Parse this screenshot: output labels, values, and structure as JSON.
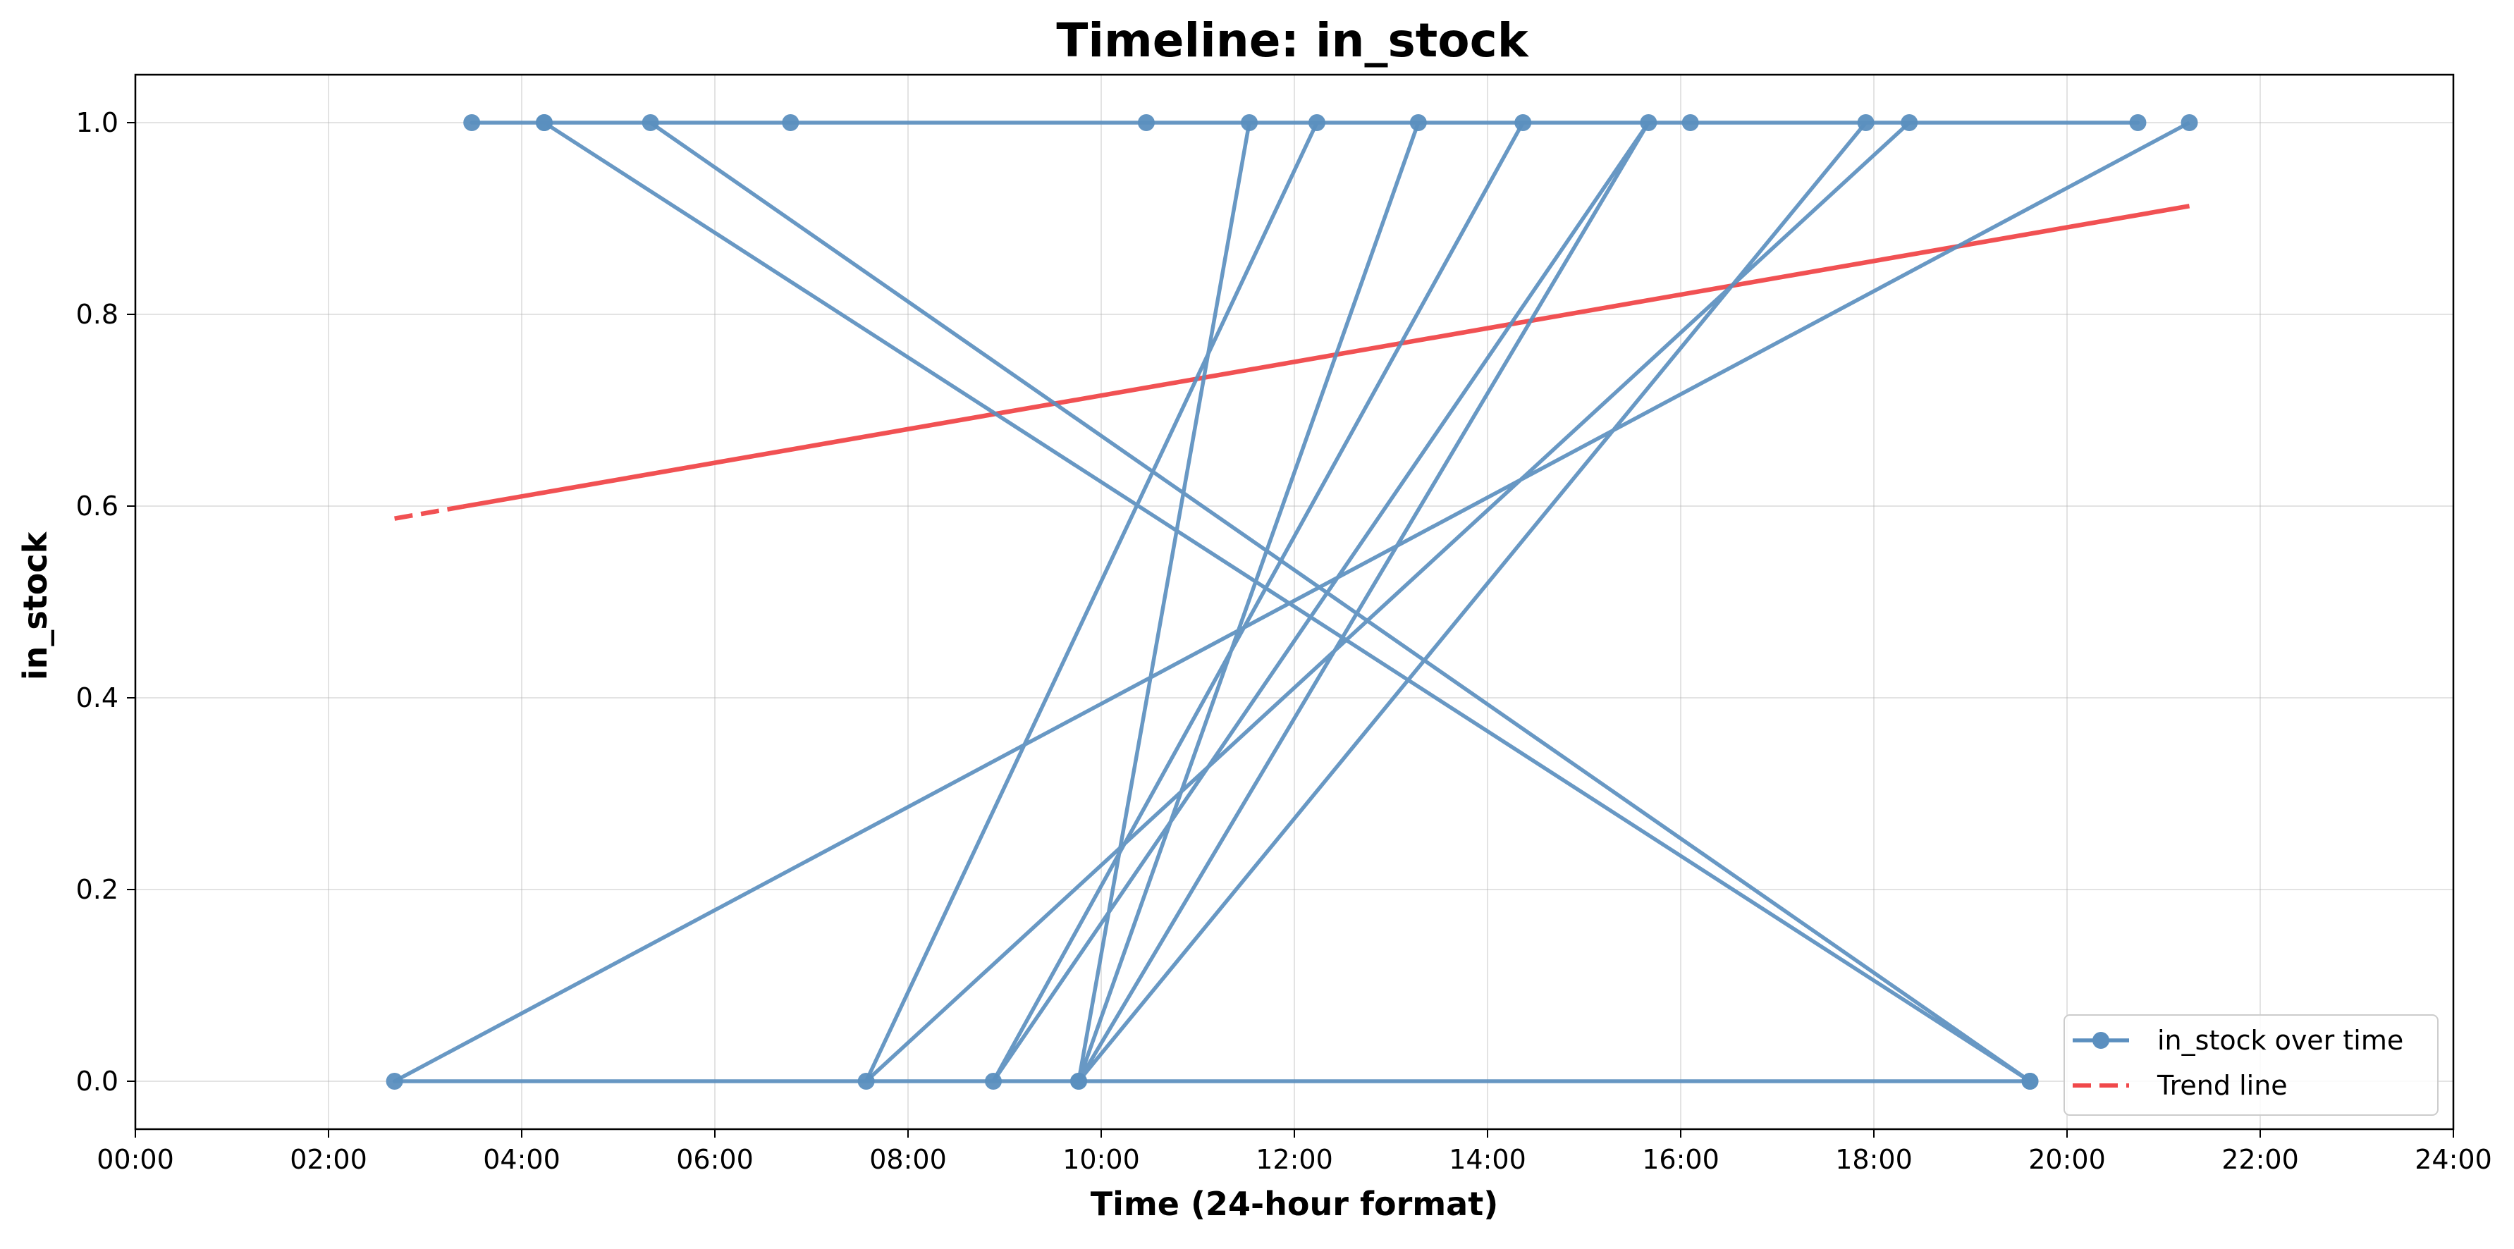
{
  "chart_data": {
    "type": "line",
    "title": "Timeline: in_stock",
    "xlabel": "Time (24-hour format)",
    "ylabel": "in_stock",
    "xlim_hours": [
      0,
      24
    ],
    "ylim": [
      -0.05,
      1.05
    ],
    "x_ticks": [
      "00:00",
      "02:00",
      "04:00",
      "06:00",
      "08:00",
      "10:00",
      "12:00",
      "14:00",
      "16:00",
      "18:00",
      "20:00",
      "22:00",
      "24:00"
    ],
    "y_ticks": [
      "0.0",
      "0.2",
      "0.4",
      "0.6",
      "0.8",
      "1.0"
    ],
    "grid": true,
    "legend_position": "bottom-right",
    "series": [
      {
        "name": "in_stock over time",
        "style": "line-with-markers",
        "color": "#5b8fbf",
        "points": [
          {
            "time": "05:20",
            "value": 1
          },
          {
            "time": "19:37",
            "value": 0
          },
          {
            "time": "04:14",
            "value": 1
          },
          {
            "time": "06:47",
            "value": 1
          },
          {
            "time": "10:28",
            "value": 1
          },
          {
            "time": "03:29",
            "value": 1
          },
          {
            "time": "20:44",
            "value": 1
          },
          {
            "time": "17:55",
            "value": 1
          },
          {
            "time": "09:46",
            "value": 0
          },
          {
            "time": "15:40",
            "value": 1
          },
          {
            "time": "08:53",
            "value": 0
          },
          {
            "time": "14:22",
            "value": 1
          },
          {
            "time": "16:06",
            "value": 1
          },
          {
            "time": "18:22",
            "value": 1
          },
          {
            "time": "07:34",
            "value": 0
          },
          {
            "time": "12:14",
            "value": 1
          },
          {
            "time": "13:17",
            "value": 1
          },
          {
            "time": "09:46",
            "value": 0
          },
          {
            "time": "11:32",
            "value": 1
          },
          {
            "time": "04:14",
            "value": 1
          },
          {
            "time": "19:37",
            "value": 0
          },
          {
            "time": "02:41",
            "value": 0
          },
          {
            "time": "21:16",
            "value": 1
          }
        ]
      },
      {
        "name": "Trend line",
        "style": "dashed",
        "color": "#f0484a",
        "points": [
          {
            "time": "02:41",
            "value": 0.587
          },
          {
            "time": "21:16",
            "value": 0.913
          }
        ]
      }
    ]
  }
}
